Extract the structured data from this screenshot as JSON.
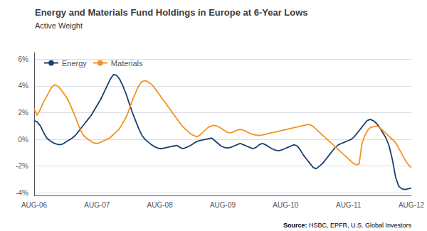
{
  "chart_data": {
    "type": "line",
    "title": "Energy and Materials Fund Holdings in Europe at 6-Year Lows",
    "subtitle": "Active Weight",
    "source_label": "Source:",
    "source": "HSBC, EPFR, U.S. Global Investors",
    "xlim": [
      0,
      72
    ],
    "xticks": [
      {
        "value": 0,
        "label": "AUG-06"
      },
      {
        "value": 12,
        "label": "AUG-07"
      },
      {
        "value": 24,
        "label": "AUG-08"
      },
      {
        "value": 36,
        "label": "AUG-09"
      },
      {
        "value": 48,
        "label": "AUG-10"
      },
      {
        "value": 60,
        "label": "AUG-11"
      },
      {
        "value": 72,
        "label": "AUG-12"
      }
    ],
    "ylim": [
      -4.2,
      6.5
    ],
    "yticks": [
      {
        "value": -4,
        "label": "-4%"
      },
      {
        "value": -2,
        "label": "-2%"
      },
      {
        "value": 0,
        "label": "0%"
      },
      {
        "value": 2,
        "label": "2%"
      },
      {
        "value": 4,
        "label": "4%"
      },
      {
        "value": 6,
        "label": "6%"
      }
    ],
    "grid": "y",
    "legend": "upper left",
    "series": [
      {
        "name": "Energy",
        "color": "#1b3f6e",
        "values": [
          1.4,
          1.3,
          1.0,
          0.5,
          0.1,
          -0.1,
          -0.25,
          -0.35,
          -0.4,
          -0.35,
          -0.2,
          -0.05,
          0.1,
          0.3,
          0.6,
          0.9,
          1.2,
          1.5,
          1.8,
          2.2,
          2.6,
          3.0,
          3.5,
          4.0,
          4.5,
          4.85,
          4.8,
          4.5,
          4.0,
          3.4,
          2.7,
          2.0,
          1.4,
          0.8,
          0.3,
          0.0,
          -0.2,
          -0.4,
          -0.55,
          -0.65,
          -0.7,
          -0.65,
          -0.6,
          -0.55,
          -0.5,
          -0.45,
          -0.6,
          -0.7,
          -0.6,
          -0.5,
          -0.35,
          -0.2,
          -0.1,
          -0.05,
          0.0,
          0.05,
          0.1,
          -0.1,
          -0.3,
          -0.5,
          -0.6,
          -0.65,
          -0.6,
          -0.5,
          -0.4,
          -0.3,
          -0.4,
          -0.5,
          -0.6,
          -0.7,
          -0.6,
          -0.4,
          -0.3,
          -0.4,
          -0.55,
          -0.7,
          -0.8,
          -0.85,
          -0.8,
          -0.7,
          -0.6,
          -0.5,
          -0.4,
          -0.5,
          -0.8,
          -1.2,
          -1.5,
          -1.8,
          -2.1,
          -2.2,
          -2.0,
          -1.8,
          -1.5,
          -1.2,
          -0.9,
          -0.6,
          -0.4,
          -0.3,
          -0.2,
          -0.1,
          0.0,
          0.2,
          0.5,
          0.8,
          1.1,
          1.4,
          1.5,
          1.4,
          1.2,
          0.9,
          0.5,
          0.1,
          -0.5,
          -1.5,
          -2.8,
          -3.5,
          -3.7,
          -3.75,
          -3.7,
          -3.65
        ]
      },
      {
        "name": "Materials",
        "color": "#f5921e",
        "values": [
          2.3,
          1.8,
          2.2,
          2.7,
          3.1,
          3.5,
          3.9,
          4.1,
          4.0,
          3.8,
          3.5,
          3.2,
          2.8,
          2.3,
          1.8,
          1.2,
          0.7,
          0.3,
          0.1,
          -0.05,
          -0.2,
          -0.3,
          -0.3,
          -0.2,
          -0.1,
          0.0,
          0.1,
          0.3,
          0.5,
          0.7,
          1.0,
          1.4,
          1.8,
          2.4,
          3.0,
          3.5,
          4.0,
          4.3,
          4.4,
          4.35,
          4.2,
          4.0,
          3.7,
          3.4,
          3.1,
          2.8,
          2.5,
          2.2,
          1.9,
          1.6,
          1.3,
          1.0,
          0.8,
          0.6,
          0.4,
          0.3,
          0.2,
          0.3,
          0.5,
          0.7,
          0.9,
          1.0,
          1.05,
          1.0,
          0.9,
          0.75,
          0.6,
          0.5,
          0.5,
          0.6,
          0.7,
          0.75,
          0.7,
          0.6,
          0.5,
          0.4,
          0.35,
          0.3,
          0.3,
          0.35,
          0.4,
          0.45,
          0.5,
          0.55,
          0.6,
          0.65,
          0.7,
          0.75,
          0.8,
          0.85,
          0.9,
          0.95,
          1.0,
          1.05,
          1.1,
          1.1,
          1.0,
          0.8,
          0.6,
          0.4,
          0.2,
          0.0,
          -0.2,
          -0.4,
          -0.6,
          -0.8,
          -1.0,
          -1.2,
          -1.4,
          -1.6,
          -1.8,
          -1.9,
          -1.85,
          -0.3,
          0.3,
          0.7,
          0.9,
          0.95,
          1.0,
          0.9,
          0.7,
          0.5,
          0.3,
          0.1,
          -0.1,
          -0.4,
          -0.8,
          -1.2,
          -1.6,
          -1.9,
          -2.1
        ]
      }
    ]
  }
}
